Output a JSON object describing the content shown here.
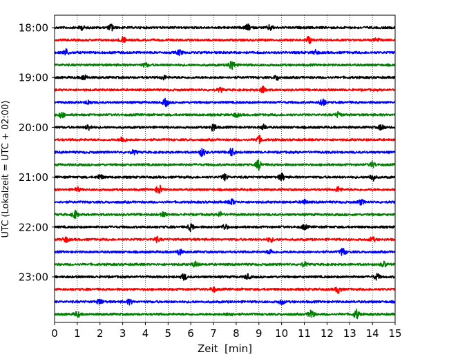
{
  "chart_data": {
    "type": "line",
    "subtype": "helicorder (seismogram drum plot)",
    "xlabel": "Zeit  [min]",
    "ylabel": "UTC (Lokalzeit = UTC + 02:00)",
    "xlim": [
      0,
      15
    ],
    "x_ticks": [
      "0",
      "1",
      "2",
      "3",
      "4",
      "5",
      "6",
      "7",
      "8",
      "9",
      "10",
      "11",
      "12",
      "13",
      "14",
      "15"
    ],
    "y_ticks": [
      "18:00",
      "19:00",
      "20:00",
      "21:00",
      "22:00",
      "23:00"
    ],
    "vertical_grid": "dotted at each minute",
    "trace_interval_minutes": 15,
    "trace_color_cycle": [
      "#000000",
      "#ff0000",
      "#0000ff",
      "#008000"
    ],
    "trace_count": 24,
    "traces": [
      {
        "start": "18:00",
        "color": "#000000",
        "events": [
          [
            2.5,
            0.5
          ],
          [
            8.5,
            0.45
          ],
          [
            9.5,
            0.4
          ],
          [
            1.2,
            0.3
          ]
        ]
      },
      {
        "start": "18:15",
        "color": "#ff0000",
        "events": [
          [
            3.0,
            0.45
          ],
          [
            11.2,
            0.6
          ],
          [
            14.2,
            0.3
          ]
        ]
      },
      {
        "start": "18:30",
        "color": "#0000ff",
        "events": [
          [
            0.5,
            0.5
          ],
          [
            5.5,
            0.4
          ],
          [
            11.5,
            0.3
          ]
        ]
      },
      {
        "start": "18:45",
        "color": "#008000",
        "events": [
          [
            7.8,
            0.8
          ],
          [
            4.0,
            0.3
          ]
        ]
      },
      {
        "start": "19:00",
        "color": "#000000",
        "events": [
          [
            1.3,
            0.4
          ],
          [
            4.8,
            0.3
          ],
          [
            9.8,
            0.35
          ]
        ]
      },
      {
        "start": "19:15",
        "color": "#ff0000",
        "events": [
          [
            9.2,
            0.55
          ],
          [
            7.3,
            0.3
          ]
        ]
      },
      {
        "start": "19:30",
        "color": "#0000ff",
        "events": [
          [
            4.9,
            0.55
          ],
          [
            11.8,
            0.6
          ],
          [
            1.5,
            0.3
          ]
        ]
      },
      {
        "start": "19:45",
        "color": "#008000",
        "events": [
          [
            0.3,
            0.45
          ],
          [
            12.5,
            0.4
          ],
          [
            8.0,
            0.3
          ]
        ]
      },
      {
        "start": "20:00",
        "color": "#000000",
        "events": [
          [
            1.5,
            0.45
          ],
          [
            7.0,
            0.55
          ],
          [
            9.2,
            0.35
          ],
          [
            14.4,
            0.45
          ]
        ]
      },
      {
        "start": "20:15",
        "color": "#ff0000",
        "events": [
          [
            3.0,
            0.45
          ],
          [
            9.0,
            0.55
          ]
        ]
      },
      {
        "start": "20:30",
        "color": "#0000ff",
        "events": [
          [
            6.5,
            0.6
          ],
          [
            7.8,
            0.6
          ],
          [
            3.5,
            0.3
          ]
        ]
      },
      {
        "start": "20:45",
        "color": "#008000",
        "events": [
          [
            9.0,
            0.75
          ],
          [
            14.0,
            0.4
          ]
        ]
      },
      {
        "start": "21:00",
        "color": "#000000",
        "events": [
          [
            2.0,
            0.4
          ],
          [
            7.5,
            0.45
          ],
          [
            10.0,
            0.55
          ],
          [
            14.0,
            0.55
          ]
        ]
      },
      {
        "start": "21:15",
        "color": "#ff0000",
        "events": [
          [
            4.6,
            0.7
          ],
          [
            12.5,
            0.4
          ],
          [
            1.0,
            0.3
          ]
        ]
      },
      {
        "start": "21:30",
        "color": "#0000ff",
        "events": [
          [
            7.8,
            0.45
          ],
          [
            11.0,
            0.35
          ],
          [
            13.5,
            0.35
          ]
        ]
      },
      {
        "start": "21:45",
        "color": "#008000",
        "events": [
          [
            0.9,
            0.6
          ],
          [
            4.8,
            0.3
          ],
          [
            7.3,
            0.35
          ]
        ]
      },
      {
        "start": "22:00",
        "color": "#000000",
        "events": [
          [
            6.0,
            0.55
          ],
          [
            7.5,
            0.4
          ],
          [
            11.0,
            0.35
          ]
        ]
      },
      {
        "start": "22:15",
        "color": "#ff0000",
        "events": [
          [
            0.5,
            0.4
          ],
          [
            4.5,
            0.35
          ],
          [
            9.5,
            0.35
          ],
          [
            14.0,
            0.35
          ]
        ]
      },
      {
        "start": "22:30",
        "color": "#0000ff",
        "events": [
          [
            5.5,
            0.4
          ],
          [
            9.5,
            0.35
          ],
          [
            12.7,
            0.55
          ]
        ]
      },
      {
        "start": "22:45",
        "color": "#008000",
        "events": [
          [
            6.2,
            0.4
          ],
          [
            11.0,
            0.35
          ],
          [
            14.5,
            0.4
          ]
        ]
      },
      {
        "start": "23:00",
        "color": "#000000",
        "events": [
          [
            5.7,
            0.45
          ],
          [
            8.5,
            0.35
          ],
          [
            14.2,
            0.45
          ]
        ]
      },
      {
        "start": "23:15",
        "color": "#ff0000",
        "events": [
          [
            12.5,
            0.55
          ],
          [
            7.0,
            0.35
          ]
        ]
      },
      {
        "start": "23:30",
        "color": "#0000ff",
        "events": [
          [
            2.0,
            0.4
          ],
          [
            3.3,
            0.35
          ],
          [
            10.0,
            0.35
          ]
        ]
      },
      {
        "start": "23:45",
        "color": "#008000",
        "events": [
          [
            11.3,
            0.7
          ],
          [
            13.3,
            0.7
          ],
          [
            1.0,
            0.4
          ],
          [
            7.7,
            0.35
          ]
        ]
      }
    ]
  }
}
